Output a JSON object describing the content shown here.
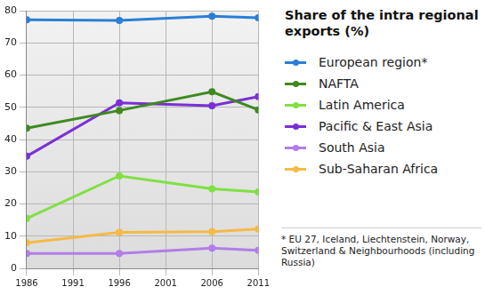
{
  "chart_data": {
    "type": "line",
    "title": "Share of the intra regional exports (%)",
    "footnote": "* EU 27, Iceland, Liechtenstein, Norway, Switzerland & Neighbourhoods (including Russia)",
    "x": [
      1986,
      1996,
      2006,
      2011
    ],
    "series": [
      {
        "name": "European region*",
        "color": "#2a7fd6",
        "values": [
          77.2,
          77.0,
          78.3,
          77.8
        ]
      },
      {
        "name": "NAFTA",
        "color": "#3e8a1f",
        "values": [
          43.5,
          49.0,
          54.8,
          49.2
        ]
      },
      {
        "name": "Latin America",
        "color": "#80e043",
        "values": [
          15.5,
          28.7,
          24.7,
          23.7
        ]
      },
      {
        "name": "Pacific & East Asia",
        "color": "#7a30d4",
        "values": [
          34.8,
          51.4,
          50.5,
          53.3
        ]
      },
      {
        "name": "South Asia",
        "color": "#b27de8",
        "values": [
          4.6,
          4.6,
          6.3,
          5.6
        ]
      },
      {
        "name": "Sub-Saharan Africa",
        "color": "#f5ba45",
        "values": [
          7.9,
          11.2,
          11.4,
          12.2
        ]
      }
    ],
    "xlim": [
      1986,
      2011
    ],
    "xticks": [
      1986,
      1991,
      1996,
      2001,
      2006,
      2011
    ],
    "ylim": [
      0,
      80
    ],
    "yticks": [
      0,
      10,
      20,
      30,
      40,
      50,
      60,
      70,
      80
    ],
    "grid": true,
    "legend": "right",
    "marker": "circle"
  }
}
